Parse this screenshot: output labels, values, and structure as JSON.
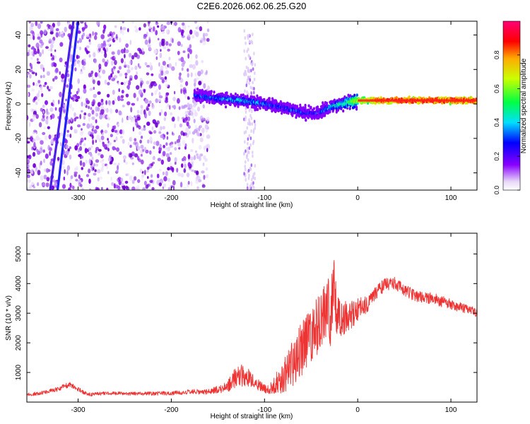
{
  "title": "C2E6.2026.062.06.25.G20",
  "colors": {
    "snr_line": "#ee3333",
    "signal_ridge": "#ff1f1f"
  },
  "colorbar": {
    "label": "Normalized spectral amplitude",
    "ticks": [
      "0.0",
      "0.2",
      "0.4",
      "0.6",
      "0.8"
    ],
    "tick_values": [
      0.0,
      0.2,
      0.4,
      0.6,
      0.8
    ],
    "range": [
      0,
      1
    ],
    "colormap": "gist_rainbow (violet-blue-cyan-green-yellow-orange-red-magenta)"
  },
  "chart_data": [
    {
      "type": "heatmap",
      "xlabel": "Height of straight line (km)",
      "ylabel": "Frequency (Hz)",
      "xlim": [
        -355,
        128
      ],
      "ylim": [
        -50,
        48
      ],
      "x_ticks": [
        -300,
        -200,
        -100,
        0,
        100
      ],
      "x_tick_labels": [
        "-300",
        "-200",
        "-100",
        "0",
        "100"
      ],
      "y_ticks": [
        -40,
        -20,
        0,
        20,
        40
      ],
      "y_tick_labels": [
        "-40",
        "-20",
        "0",
        "20",
        "40"
      ],
      "grid": false,
      "noise_region_x": [
        -355,
        -160
      ],
      "noise_band_x": [
        -122,
        -110
      ],
      "drift_lines": [
        {
          "x": [
            -322,
            -300
          ],
          "y": [
            -50,
            48
          ]
        },
        {
          "x": [
            -330,
            -305
          ],
          "y": [
            -50,
            48
          ]
        }
      ],
      "signal_ridge": {
        "x": [
          -175,
          -150,
          -125,
          -100,
          -80,
          -60,
          -45,
          -30,
          -10,
          0,
          20,
          40,
          60,
          80,
          100,
          128
        ],
        "freq": [
          5,
          3,
          2,
          0,
          -2,
          -5,
          -6,
          -2,
          1,
          2,
          2,
          2,
          2,
          2,
          2,
          2
        ],
        "amplitude": [
          0.3,
          0.35,
          0.4,
          0.35,
          0.3,
          0.3,
          0.25,
          0.4,
          0.55,
          0.7,
          0.85,
          0.9,
          0.9,
          0.9,
          0.9,
          0.9
        ]
      }
    },
    {
      "type": "line",
      "xlabel": "Height of straight line (km)",
      "ylabel": "SNR (10 * v/v)",
      "xlim": [
        -355,
        128
      ],
      "ylim": [
        0,
        5700
      ],
      "x_ticks": [
        -300,
        -200,
        -100,
        0,
        100
      ],
      "x_tick_labels": [
        "-300",
        "-200",
        "-100",
        "0",
        "100"
      ],
      "y_ticks": [
        1000,
        2000,
        3000,
        4000,
        5000
      ],
      "y_tick_labels": [
        "1000",
        "2000",
        "3000",
        "4000",
        "5000"
      ],
      "grid": false,
      "series": [
        {
          "x": [
            -355,
            -340,
            -320,
            -310,
            -300,
            -290,
            -270,
            -240,
            -200,
            -180,
            -160,
            -140,
            -130,
            -120,
            -110,
            -100,
            -90,
            -80,
            -70,
            -60,
            -50,
            -40,
            -30,
            -25,
            -20,
            -10,
            0,
            10,
            20,
            30,
            40,
            50,
            60,
            80,
            100,
            120,
            128
          ],
          "y": [
            250,
            300,
            450,
            600,
            450,
            250,
            300,
            280,
            300,
            350,
            350,
            500,
            900,
            900,
            650,
            450,
            500,
            900,
            1300,
            1800,
            2300,
            2600,
            3000,
            4000,
            2800,
            2900,
            3100,
            3300,
            3700,
            4000,
            4000,
            3800,
            3600,
            3500,
            3300,
            3100,
            3000
          ],
          "noise": [
            60,
            60,
            80,
            100,
            80,
            60,
            60,
            60,
            70,
            80,
            90,
            180,
            400,
            350,
            200,
            150,
            300,
            600,
            800,
            900,
            1000,
            1100,
            1300,
            1500,
            700,
            500,
            450,
            300,
            250,
            220,
            220,
            200,
            200,
            200,
            180,
            160,
            160
          ]
        }
      ]
    }
  ]
}
